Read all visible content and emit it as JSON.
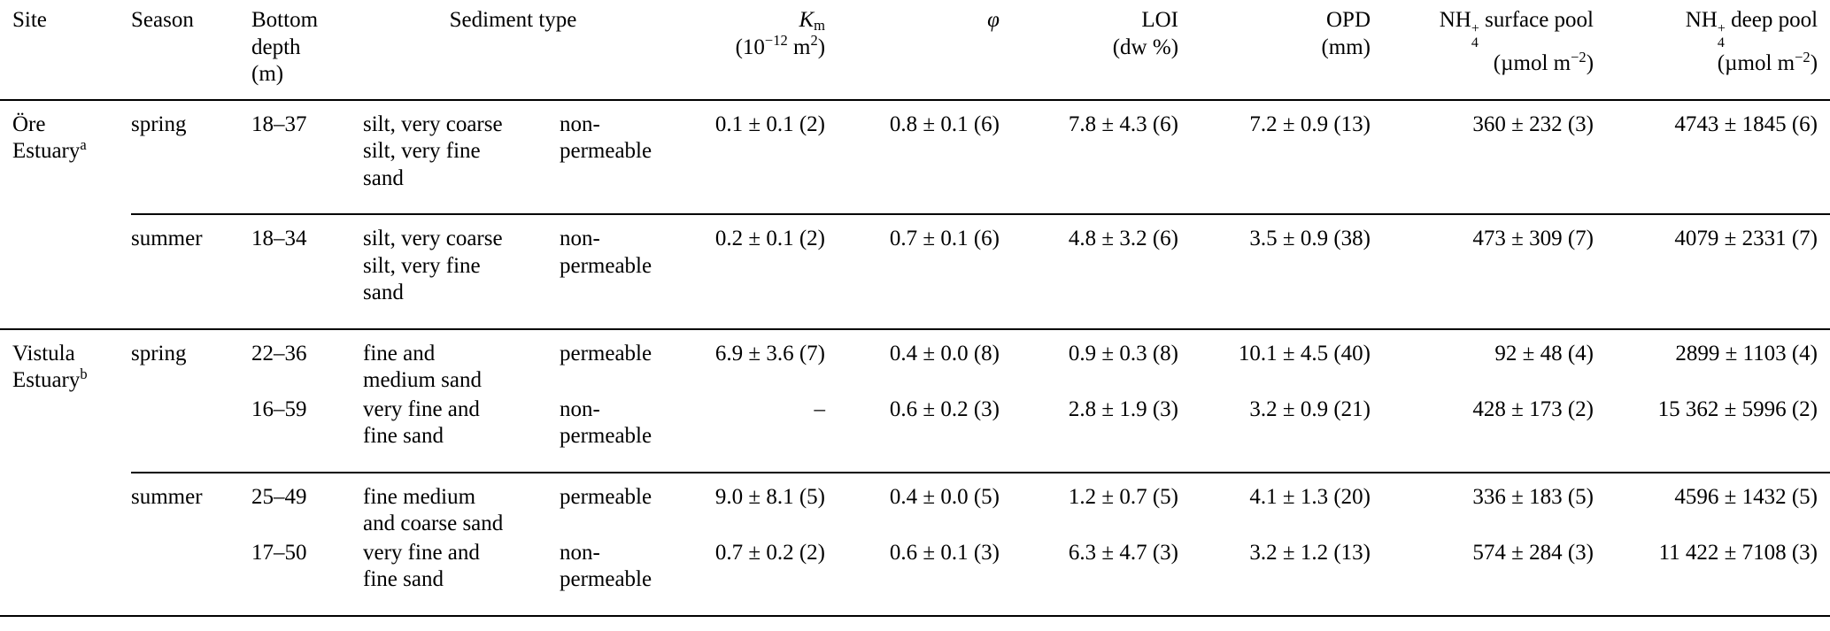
{
  "page": {
    "background": "#ffffff",
    "rule_color": "#000000"
  },
  "table": {
    "header": {
      "site": "Site",
      "season": "Season",
      "depth": "Bottom<br>depth<br>(m)",
      "sediment_type": "Sediment type",
      "km": "<i>K</i><sub>m</sub><br>(10<sup>−12</sup> m<sup>2</sup>)",
      "phi": "<i>φ</i>",
      "loi": "LOI<br>(dw %)",
      "opd": "OPD<br>(mm)",
      "nh4_surface": "NH<span class=\"supsub\"><span>+</span><span>4</span></span> surface pool<br>(µmol m<sup>−2</sup>)",
      "nh4_deep": "NH<span class=\"supsub\"><span>+</span><span>4</span></span> deep pool<br>(µmol m<sup>−2</sup>)"
    },
    "rows": [
      {
        "site": "Öre<br>Estuary<sup>a</sup>",
        "season": "spring",
        "depth": "18–37",
        "sediment": "silt, very coarse<br>silt, very fine<br>sand",
        "permeability": "non-<br>permeable",
        "km": "0.1 ± 0.1 (2)",
        "phi": "0.8 ± 0.1 (6)",
        "loi": "7.8 ± 4.3 (6)",
        "opd": "7.2 ± 0.9 (13)",
        "nh4_surface": "360 ± 232 (3)",
        "nh4_deep": "4743 ± 1845 (6)"
      },
      {
        "season": "summer",
        "depth": "18–34",
        "sediment": "silt, very coarse<br>silt, very fine<br>sand",
        "permeability": "non-<br>permeable",
        "km": "0.2 ± 0.1 (2)",
        "phi": "0.7 ± 0.1 (6)",
        "loi": "4.8 ± 3.2 (6)",
        "opd": "3.5 ± 0.9 (38)",
        "nh4_surface": "473 ± 309 (7)",
        "nh4_deep": "4079 ± 2331 (7)"
      },
      {
        "site": "Vistula<br>Estuary<sup>b</sup>",
        "season": "spring",
        "depth": "22–36",
        "sediment": "fine and<br>medium sand",
        "permeability": "permeable",
        "km": "6.9 ± 3.6 (7)",
        "phi": "0.4 ± 0.0 (8)",
        "loi": "0.9 ± 0.3 (8)",
        "opd": "10.1 ± 4.5 (40)",
        "nh4_surface": "92 ± 48 (4)",
        "nh4_deep": "2899 ± 1103 (4)"
      },
      {
        "season": "",
        "depth": "16–59",
        "sediment": "very fine and<br>fine sand",
        "permeability": "non-<br>permeable",
        "km": "–",
        "phi": "0.6 ± 0.2 (3)",
        "loi": "2.8 ± 1.9 (3)",
        "opd": "3.2 ± 0.9 (21)",
        "nh4_surface": "428 ± 173 (2)",
        "nh4_deep": "15 362 ± 5996 (2)"
      },
      {
        "season": "summer",
        "depth": "25–49",
        "sediment": "fine medium<br>and coarse sand",
        "permeability": "permeable",
        "km": "9.0 ± 8.1 (5)",
        "phi": "0.4 ± 0.0 (5)",
        "loi": "1.2 ± 0.7 (5)",
        "opd": "4.1 ± 1.3 (20)",
        "nh4_surface": "336 ± 183 (5)",
        "nh4_deep": "4596 ± 1432 (5)"
      },
      {
        "season": "",
        "depth": "17–50",
        "sediment": "very fine and<br>fine sand",
        "permeability": "non-<br>permeable",
        "km": "0.7 ± 0.2 (2)",
        "phi": "0.6 ± 0.1 (3)",
        "loi": "6.3 ± 4.7 (3)",
        "opd": "3.2 ± 1.2 (13)",
        "nh4_surface": "574 ± 284 (3)",
        "nh4_deep": "11 422 ± 7108 (3)"
      }
    ]
  }
}
